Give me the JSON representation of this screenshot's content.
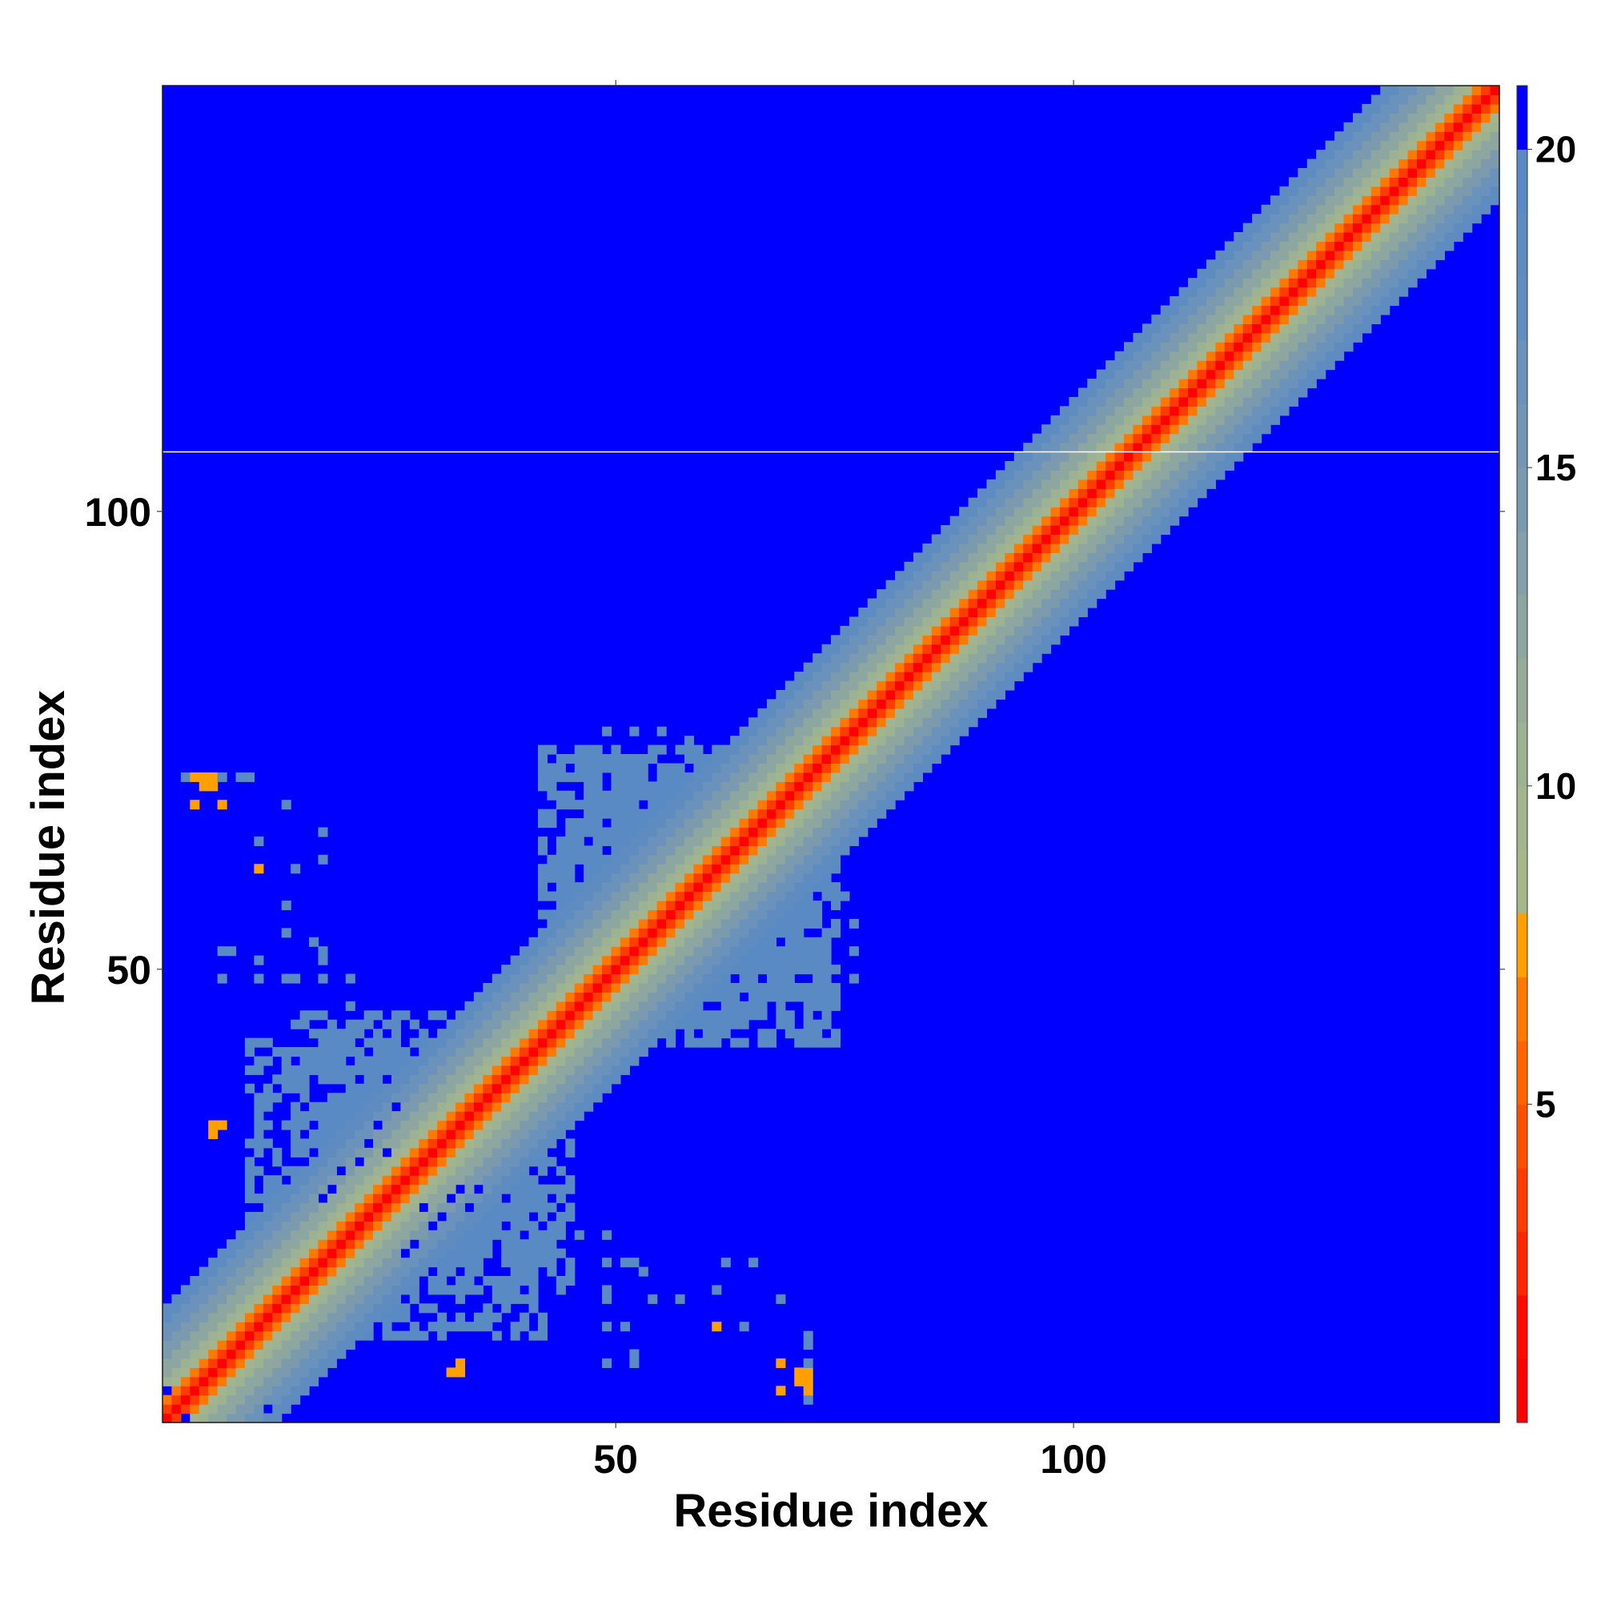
{
  "chart_data": {
    "type": "heatmap",
    "title": "",
    "xlabel": "Residue index",
    "ylabel": "Residue index",
    "n_residues": 146,
    "xlim": [
      1,
      146
    ],
    "ylim": [
      1,
      146
    ],
    "x_ticks": [
      50,
      100
    ],
    "y_ticks": [
      50,
      100
    ],
    "x_tick_labels": [
      "50",
      "100"
    ],
    "y_tick_labels": [
      "50",
      "100"
    ],
    "description_free": true,
    "values_meaning": "pairwise residue distance",
    "colorbar": {
      "range": [
        0,
        21
      ],
      "ticks": [
        5,
        10,
        15,
        20
      ],
      "tick_labels": [
        "5",
        "10",
        "15",
        "20"
      ],
      "levels": [
        {
          "from": 0,
          "to": 1,
          "color": "#ff0000"
        },
        {
          "from": 1,
          "to": 2,
          "color": "#ff0a00"
        },
        {
          "from": 2,
          "to": 3,
          "color": "#ff2600"
        },
        {
          "from": 3,
          "to": 4,
          "color": "#ff3c00"
        },
        {
          "from": 4,
          "to": 5,
          "color": "#ff5000"
        },
        {
          "from": 5,
          "to": 6,
          "color": "#ff6400"
        },
        {
          "from": 6,
          "to": 7,
          "color": "#ff7800"
        },
        {
          "from": 7,
          "to": 8,
          "color": "#ffa000"
        },
        {
          "from": 8,
          "to": 9,
          "color": "#a6b88a"
        },
        {
          "from": 9,
          "to": 10,
          "color": "#a2b58e"
        },
        {
          "from": 10,
          "to": 11,
          "color": "#9db293"
        },
        {
          "from": 11,
          "to": 12,
          "color": "#96ac99"
        },
        {
          "from": 12,
          "to": 13,
          "color": "#8ea6a0"
        },
        {
          "from": 13,
          "to": 14,
          "color": "#85a0a8"
        },
        {
          "from": 14,
          "to": 15,
          "color": "#7c9aae"
        },
        {
          "from": 15,
          "to": 16,
          "color": "#7396b4"
        },
        {
          "from": 16,
          "to": 17,
          "color": "#6a92ba"
        },
        {
          "from": 17,
          "to": 18,
          "color": "#628ebf"
        },
        {
          "from": 18,
          "to": 19,
          "color": "#5e8cc1"
        },
        {
          "from": 19,
          "to": 20,
          "color": "#5a8ac3"
        },
        {
          "from": 20,
          "to": 21,
          "color": "#0000ff"
        }
      ]
    },
    "background_color": "#0000ff",
    "band": {
      "thresholds": [
        {
          "offset_max": 0.5,
          "value": 0.5
        },
        {
          "offset_max": 1.2,
          "value": 3.5
        },
        {
          "offset_max": 2.2,
          "value": 6.5
        },
        {
          "offset_max": 3.2,
          "value": 9
        },
        {
          "offset_max": 4.8,
          "value": 10.5
        },
        {
          "offset_max": 6.5,
          "value": 12.5
        },
        {
          "offset_max": 8.5,
          "value": 14.5
        },
        {
          "offset_max": 10.5,
          "value": 16.5
        },
        {
          "offset_max": 12.5,
          "value": 18.5
        }
      ]
    },
    "off_diagonal_cells": [
      {
        "i": 4,
        "j": 71,
        "value": 7.5
      },
      {
        "i": 5,
        "j": 71,
        "value": 7.5
      },
      {
        "i": 6,
        "j": 71,
        "value": 7.5
      },
      {
        "i": 7,
        "j": 71,
        "value": 19
      },
      {
        "i": 9,
        "j": 71,
        "value": 19
      },
      {
        "i": 10,
        "j": 71,
        "value": 19
      },
      {
        "i": 3,
        "j": 71,
        "value": 19
      },
      {
        "i": 7,
        "j": 68,
        "value": 7.5
      },
      {
        "i": 14,
        "j": 68,
        "value": 19
      },
      {
        "i": 11,
        "j": 61,
        "value": 7.5
      },
      {
        "i": 11,
        "j": 64,
        "value": 19
      },
      {
        "i": 14,
        "j": 57,
        "value": 19
      },
      {
        "i": 17,
        "j": 53,
        "value": 19
      },
      {
        "i": 14,
        "j": 54,
        "value": 19
      },
      {
        "i": 14,
        "j": 49,
        "value": 19
      },
      {
        "i": 21,
        "j": 46,
        "value": 19
      },
      {
        "i": 21,
        "j": 49,
        "value": 19
      },
      {
        "i": 6,
        "j": 33,
        "value": 7.5
      },
      {
        "i": 32,
        "j": 6,
        "value": 7.5
      },
      {
        "i": 33,
        "j": 7,
        "value": 7.5
      },
      {
        "i": 68,
        "j": 4,
        "value": 7.5
      },
      {
        "i": 70,
        "j": 5,
        "value": 7.5
      },
      {
        "i": 70,
        "j": 6,
        "value": 7.5
      },
      {
        "i": 71,
        "j": 3,
        "value": 19
      },
      {
        "i": 71,
        "j": 9,
        "value": 19
      },
      {
        "i": 71,
        "j": 10,
        "value": 19
      },
      {
        "i": 61,
        "j": 11,
        "value": 7.5
      },
      {
        "i": 68,
        "j": 14,
        "value": 19
      },
      {
        "i": 65,
        "j": 18,
        "value": 19
      },
      {
        "i": 62,
        "j": 18,
        "value": 19
      },
      {
        "i": 61,
        "j": 15,
        "value": 19
      },
      {
        "i": 52,
        "j": 7,
        "value": 19
      },
      {
        "i": 52,
        "j": 8,
        "value": 19
      },
      {
        "i": 51,
        "j": 11,
        "value": 19
      },
      {
        "i": 49,
        "j": 7,
        "value": 19
      },
      {
        "i": 49,
        "j": 11,
        "value": 19
      },
      {
        "i": 49,
        "j": 15,
        "value": 19
      },
      {
        "i": 49,
        "j": 18,
        "value": 19
      },
      {
        "i": 51,
        "j": 18,
        "value": 19
      },
      {
        "i": 52,
        "j": 18,
        "value": 19
      },
      {
        "i": 74,
        "j": 48,
        "value": 19
      },
      {
        "i": 74,
        "j": 54,
        "value": 19
      },
      {
        "i": 74,
        "j": 55,
        "value": 19
      },
      {
        "i": 74,
        "j": 58,
        "value": 19
      },
      {
        "i": 71,
        "j": 52,
        "value": 19
      },
      {
        "i": 71,
        "j": 55,
        "value": 19
      },
      {
        "i": 58,
        "j": 75,
        "value": 19
      },
      {
        "i": 55,
        "j": 76,
        "value": 19
      },
      {
        "i": 52,
        "j": 76,
        "value": 19
      },
      {
        "i": 49,
        "j": 76,
        "value": 19
      },
      {
        "i": 56,
        "j": 72,
        "value": 19
      },
      {
        "i": 53,
        "j": 73,
        "value": 19
      }
    ],
    "clusters": [
      {
        "i_min": 47,
        "i_max": 74,
        "j_min": 42,
        "j_max": 72,
        "value": 19,
        "density": 0.7
      },
      {
        "i_min": 10,
        "i_max": 45,
        "j_min": 15,
        "j_max": 42,
        "value": 19,
        "density": 0.55
      },
      {
        "i_min": 5,
        "i_max": 18,
        "j_min": 8,
        "j_max": 16,
        "value": 11.5,
        "density": 0.5
      }
    ],
    "holes": [
      {
        "i": 30,
        "j": 22
      },
      {
        "i": 31,
        "j": 23
      },
      {
        "i": 29,
        "j": 24
      },
      {
        "i": 32,
        "j": 25
      },
      {
        "i": 33,
        "j": 26
      },
      {
        "i": 34,
        "j": 24
      },
      {
        "i": 35,
        "j": 26
      },
      {
        "i": 27,
        "j": 19
      },
      {
        "i": 28,
        "j": 20
      },
      {
        "i": 22,
        "j": 29
      },
      {
        "i": 23,
        "j": 31
      },
      {
        "i": 25,
        "j": 30
      },
      {
        "i": 24,
        "j": 33
      },
      {
        "i": 26,
        "j": 35
      },
      {
        "i": 19,
        "j": 26
      },
      {
        "i": 20,
        "j": 28
      },
      {
        "i": 18,
        "j": 25
      },
      {
        "i": 3,
        "j": 1
      },
      {
        "i": 1,
        "j": 4
      },
      {
        "i": 12,
        "j": 2
      }
    ],
    "white_line_row": 107
  }
}
